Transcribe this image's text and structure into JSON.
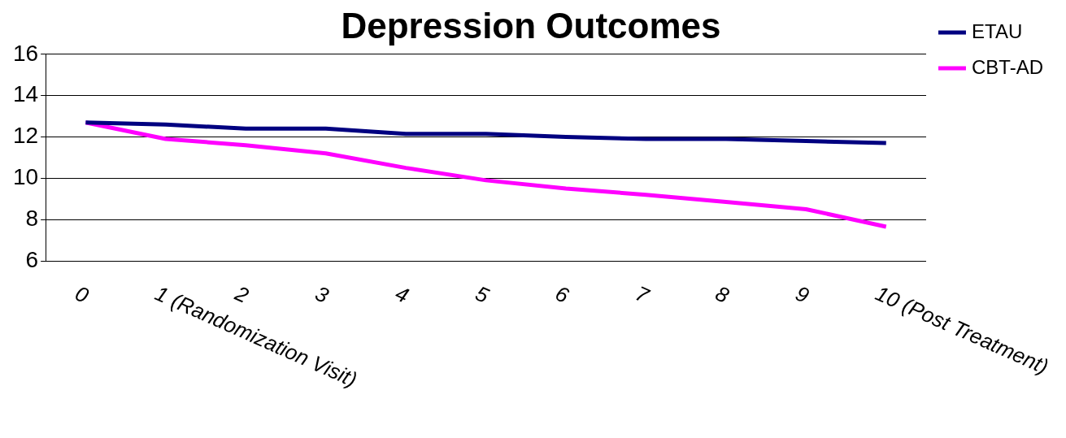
{
  "chart_data": {
    "type": "line",
    "title": "Depression Outcomes",
    "categories": [
      "0",
      "1 (Randomization Visit)",
      "2",
      "3",
      "4",
      "5",
      "6",
      "7",
      "8",
      "9",
      "10 (Post Treatment)"
    ],
    "series": [
      {
        "name": "ETAU",
        "color": "#000080",
        "values": [
          12.7,
          12.6,
          12.4,
          12.4,
          12.15,
          12.15,
          12.0,
          11.9,
          11.9,
          11.8,
          11.7
        ]
      },
      {
        "name": "CBT-AD",
        "color": "#ff00ff",
        "values": [
          12.7,
          11.9,
          11.6,
          11.2,
          10.5,
          9.9,
          9.5,
          9.2,
          8.85,
          8.5,
          7.65
        ]
      }
    ],
    "ylim": [
      6,
      16
    ],
    "yticks": [
      6,
      8,
      10,
      12,
      14,
      16
    ],
    "grid": "y",
    "legend": "top right",
    "marker": "none",
    "line_style": "solid"
  }
}
